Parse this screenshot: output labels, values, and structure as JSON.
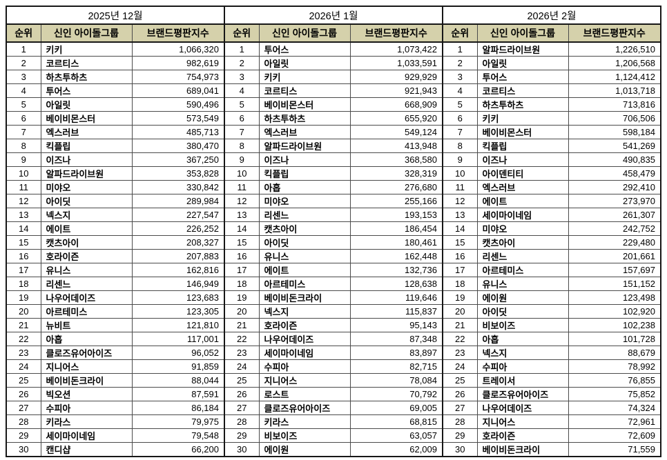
{
  "colors": {
    "header_bg": "#d5d1ab",
    "border_thin": "#4a4a4a",
    "border_thick": "#161616"
  },
  "table": {
    "columns": [
      "순위",
      "신인 아이돌그룹",
      "브랜드평판지수"
    ],
    "months": [
      {
        "title": "2025년 12월",
        "rows": [
          [
            "1",
            "키키",
            "1,066,320"
          ],
          [
            "2",
            "코르티스",
            "982,619"
          ],
          [
            "3",
            "하츠투하츠",
            "754,973"
          ],
          [
            "4",
            "투어스",
            "689,041"
          ],
          [
            "5",
            "아일릿",
            "590,496"
          ],
          [
            "6",
            "베이비몬스터",
            "573,549"
          ],
          [
            "7",
            "엑스러브",
            "485,713"
          ],
          [
            "8",
            "킥플립",
            "380,470"
          ],
          [
            "9",
            "이즈나",
            "367,250"
          ],
          [
            "10",
            "알파드라이브원",
            "353,828"
          ],
          [
            "11",
            "미야오",
            "330,842"
          ],
          [
            "12",
            "아이딧",
            "289,984"
          ],
          [
            "13",
            "넥스지",
            "227,547"
          ],
          [
            "14",
            "에이트",
            "226,252"
          ],
          [
            "15",
            "캣츠아이",
            "208,327"
          ],
          [
            "16",
            "호라이즌",
            "207,883"
          ],
          [
            "17",
            "유니스",
            "162,816"
          ],
          [
            "18",
            "리센느",
            "146,949"
          ],
          [
            "19",
            "나우어데이즈",
            "123,683"
          ],
          [
            "20",
            "아르테미스",
            "123,305"
          ],
          [
            "21",
            "뉴비트",
            "121,810"
          ],
          [
            "22",
            "아홉",
            "117,001"
          ],
          [
            "23",
            "클로즈유어아이즈",
            "96,052"
          ],
          [
            "24",
            "지니어스",
            "91,859"
          ],
          [
            "25",
            "베이비돈크라이",
            "88,044"
          ],
          [
            "26",
            "빅오션",
            "87,591"
          ],
          [
            "27",
            "수피아",
            "86,184"
          ],
          [
            "28",
            "키라스",
            "79,975"
          ],
          [
            "29",
            "세이마이네임",
            "79,548"
          ],
          [
            "30",
            "캔디샵",
            "66,200"
          ]
        ]
      },
      {
        "title": "2026년 1월",
        "rows": [
          [
            "1",
            "투어스",
            "1,073,422"
          ],
          [
            "2",
            "아일릿",
            "1,033,591"
          ],
          [
            "3",
            "키키",
            "929,929"
          ],
          [
            "4",
            "코르티스",
            "921,943"
          ],
          [
            "5",
            "베이비몬스터",
            "668,909"
          ],
          [
            "6",
            "하츠투하츠",
            "655,920"
          ],
          [
            "7",
            "엑스러브",
            "549,124"
          ],
          [
            "8",
            "알파드라이브원",
            "413,948"
          ],
          [
            "9",
            "이즈나",
            "368,580"
          ],
          [
            "10",
            "킥플립",
            "328,319"
          ],
          [
            "11",
            "아홉",
            "276,680"
          ],
          [
            "12",
            "미야오",
            "255,166"
          ],
          [
            "13",
            "리센느",
            "193,153"
          ],
          [
            "14",
            "캣츠아이",
            "186,454"
          ],
          [
            "15",
            "아이딧",
            "180,461"
          ],
          [
            "16",
            "유니스",
            "162,448"
          ],
          [
            "17",
            "에이트",
            "132,736"
          ],
          [
            "18",
            "아르테미스",
            "128,638"
          ],
          [
            "19",
            "베이비돈크라이",
            "119,646"
          ],
          [
            "20",
            "넥스지",
            "115,837"
          ],
          [
            "21",
            "호라이즌",
            "95,143"
          ],
          [
            "22",
            "나우어데이즈",
            "87,348"
          ],
          [
            "23",
            "세이마이네임",
            "83,897"
          ],
          [
            "24",
            "수피아",
            "82,715"
          ],
          [
            "25",
            "지니어스",
            "78,084"
          ],
          [
            "26",
            "로스트",
            "70,792"
          ],
          [
            "27",
            "클로즈유어아이즈",
            "69,005"
          ],
          [
            "28",
            "키라스",
            "68,815"
          ],
          [
            "29",
            "비보이즈",
            "63,057"
          ],
          [
            "30",
            "에이원",
            "62,009"
          ]
        ]
      },
      {
        "title": "2026년 2월",
        "rows": [
          [
            "1",
            "알파드라이브원",
            "1,226,510"
          ],
          [
            "2",
            "아일릿",
            "1,206,568"
          ],
          [
            "3",
            "투어스",
            "1,124,412"
          ],
          [
            "4",
            "코르티스",
            "1,013,718"
          ],
          [
            "5",
            "하츠투하츠",
            "713,816"
          ],
          [
            "6",
            "키키",
            "706,506"
          ],
          [
            "7",
            "베이비몬스터",
            "598,184"
          ],
          [
            "8",
            "킥플립",
            "541,269"
          ],
          [
            "9",
            "이즈나",
            "490,835"
          ],
          [
            "10",
            "아이덴티티",
            "458,479"
          ],
          [
            "11",
            "엑스러브",
            "292,410"
          ],
          [
            "12",
            "에이트",
            "273,970"
          ],
          [
            "13",
            "세이마이네임",
            "261,307"
          ],
          [
            "14",
            "미야오",
            "242,752"
          ],
          [
            "15",
            "캣츠아이",
            "229,480"
          ],
          [
            "16",
            "리센느",
            "201,661"
          ],
          [
            "17",
            "아르테미스",
            "157,697"
          ],
          [
            "18",
            "유니스",
            "151,152"
          ],
          [
            "19",
            "에이원",
            "123,498"
          ],
          [
            "20",
            "아이딧",
            "102,920"
          ],
          [
            "21",
            "비보이즈",
            "102,238"
          ],
          [
            "22",
            "아홉",
            "101,728"
          ],
          [
            "23",
            "넥스지",
            "88,679"
          ],
          [
            "24",
            "수피아",
            "78,992"
          ],
          [
            "25",
            "트레이서",
            "76,855"
          ],
          [
            "26",
            "클로즈유어아이즈",
            "75,852"
          ],
          [
            "27",
            "나우어데이즈",
            "74,324"
          ],
          [
            "28",
            "지니어스",
            "72,961"
          ],
          [
            "29",
            "호라이즌",
            "72,609"
          ],
          [
            "30",
            "베이비돈크라이",
            "71,559"
          ]
        ]
      }
    ]
  }
}
